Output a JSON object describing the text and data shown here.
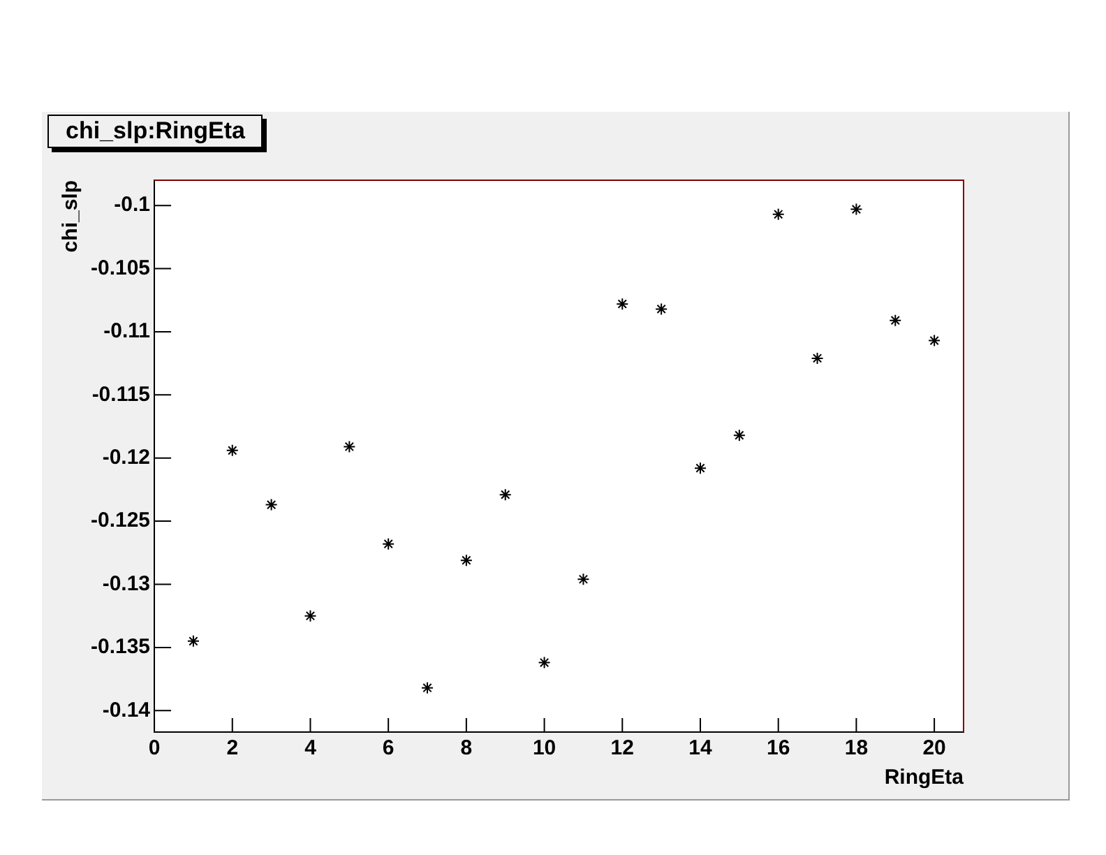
{
  "chart_data": {
    "type": "scatter",
    "title": "chi_slp:RingEta",
    "xlabel": "RingEta",
    "ylabel": "chi_slp",
    "x": [
      1,
      2,
      3,
      4,
      5,
      6,
      7,
      8,
      9,
      10,
      11,
      12,
      13,
      14,
      15,
      16,
      17,
      18,
      19,
      20
    ],
    "series": [
      {
        "color": "#000000",
        "values": [
          -0.1345,
          -0.1194,
          -0.1237,
          -0.1325,
          -0.1191,
          -0.1268,
          -0.1382,
          -0.1281,
          -0.1229,
          -0.1362,
          -0.1296,
          -0.1078,
          -0.1082,
          -0.1208,
          -0.1182,
          -0.1007,
          -0.1121,
          -0.1003,
          -0.1091,
          -0.1107
        ]
      }
    ],
    "xlim": [
      0,
      20.75
    ],
    "xticks": [
      0,
      2,
      4,
      6,
      8,
      10,
      12,
      14,
      16,
      18,
      20
    ],
    "ylim": [
      -0.1417,
      -0.098
    ],
    "yticks": [
      -0.14,
      -0.135,
      -0.13,
      -0.125,
      -0.12,
      -0.115,
      -0.11,
      -0.105,
      -0.1
    ],
    "grid": false,
    "legend": false,
    "marker": "cross"
  }
}
